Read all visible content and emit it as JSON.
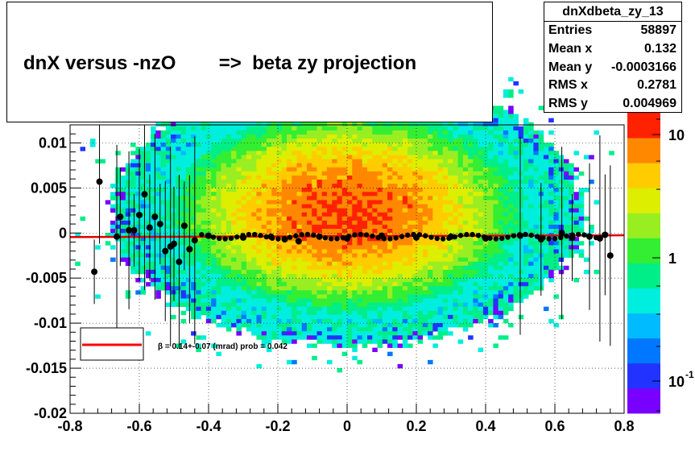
{
  "title": "dnX versus -nzO        =>  beta zy projection",
  "stats": {
    "name": "dnXdbeta_zy_13",
    "rows": [
      {
        "label": "Entries",
        "value": "58897"
      },
      {
        "label": "Mean x",
        "value": "0.132"
      },
      {
        "label": "Mean y",
        "value": "-0.0003166"
      },
      {
        "label": "RMS x",
        "value": "0.2781"
      },
      {
        "label": "RMS y",
        "value": "0.004969"
      }
    ]
  },
  "legend": {
    "fit_text": "β =    0.14+-0.07 (mrad) prob = 0.042",
    "line_color": "#ff0000"
  },
  "colors": {
    "points": "#000000",
    "fit_line": "#e00000",
    "palette": [
      "#7700ff",
      "#2233ff",
      "#0077ff",
      "#00bbff",
      "#00eedd",
      "#00ee88",
      "#33ee33",
      "#99ee22",
      "#ddee00",
      "#ffcc00",
      "#ff8800",
      "#ff2200"
    ]
  },
  "chart_data": {
    "type": "heatmap",
    "xlim": [
      -0.8,
      0.8
    ],
    "ylim": [
      -0.02,
      0.012
    ],
    "x_ticks": [
      "-0.8",
      "-0.6",
      "-0.4",
      "-0.2",
      "0",
      "0.2",
      "0.4",
      "0.6",
      "0.8"
    ],
    "y_ticks": [
      "-0.02",
      "-0.015",
      "-0.01",
      "-0.005",
      "0",
      "0.005",
      "0.01"
    ],
    "z_scale": "log",
    "z_ticks": [
      "10",
      "1",
      "10"
    ],
    "z_tick_exponents": [
      "",
      "",
      "-1"
    ],
    "profile_points": [
      {
        "x": -0.73,
        "y": -0.0043
      },
      {
        "x": -0.715,
        "y": 0.0057
      },
      {
        "x": -0.665,
        "y": -0.0004
      },
      {
        "x": -0.655,
        "y": 0.0018
      },
      {
        "x": -0.63,
        "y": 0.0003
      },
      {
        "x": -0.615,
        "y": 0.0003
      },
      {
        "x": -0.6,
        "y": 0.002
      },
      {
        "x": -0.585,
        "y": 0.0043
      },
      {
        "x": -0.57,
        "y": 0.0006
      },
      {
        "x": -0.555,
        "y": 0.0018
      },
      {
        "x": -0.54,
        "y": 0.001
      },
      {
        "x": -0.525,
        "y": -0.002
      },
      {
        "x": -0.51,
        "y": -0.0015
      },
      {
        "x": -0.5,
        "y": -0.0012
      },
      {
        "x": -0.485,
        "y": -0.0032
      },
      {
        "x": -0.47,
        "y": 0.0008
      },
      {
        "x": -0.455,
        "y": -0.0018
      },
      {
        "x": -0.44,
        "y": -0.0008
      },
      {
        "x": -0.4,
        "y": -0.0003
      },
      {
        "x": -0.3,
        "y": -0.0005
      },
      {
        "x": -0.22,
        "y": -0.0004
      },
      {
        "x": -0.18,
        "y": -0.0007
      },
      {
        "x": -0.14,
        "y": -0.0009
      },
      {
        "x": -0.08,
        "y": -0.0004
      },
      {
        "x": 0.0,
        "y": -0.0006
      },
      {
        "x": 0.1,
        "y": -0.0003
      },
      {
        "x": 0.2,
        "y": -0.0005
      },
      {
        "x": 0.3,
        "y": -0.0004
      },
      {
        "x": 0.4,
        "y": -0.0006
      },
      {
        "x": 0.5,
        "y": -0.0003
      },
      {
        "x": 0.56,
        "y": -0.0007
      },
      {
        "x": 0.62,
        "y": 0.0
      },
      {
        "x": 0.65,
        "y": -0.0005
      },
      {
        "x": 0.7,
        "y": -0.0004
      },
      {
        "x": 0.73,
        "y": -0.0006
      },
      {
        "x": 0.745,
        "y": -0.0002
      },
      {
        "x": 0.76,
        "y": -0.0025
      }
    ],
    "fit_line": {
      "x": [
        -0.8,
        0.8
      ],
      "y": [
        -0.00045,
        -0.00025
      ]
    },
    "fit_result": "β =    0.14+-0.07 (mrad) prob = 0.042"
  }
}
